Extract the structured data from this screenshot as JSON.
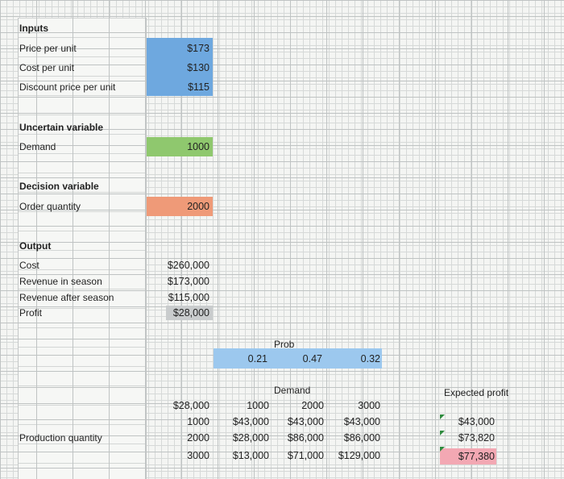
{
  "inputs": {
    "header": "Inputs",
    "price_label": "Price per unit",
    "price_value": "$173",
    "cost_label": "Cost per unit",
    "cost_value": "$130",
    "discount_label": "Discount price per unit",
    "discount_value": "$115"
  },
  "uncertain": {
    "header": "Uncertain variable",
    "demand_label": "Demand",
    "demand_value": "1000"
  },
  "decision": {
    "header": "Decision variable",
    "order_label": "Order quantity",
    "order_value": "2000"
  },
  "output": {
    "header": "Output",
    "cost_label": "Cost",
    "cost_value": "$260,000",
    "rev_in_label": "Revenue in season",
    "rev_in_value": "$173,000",
    "rev_after_label": "Revenue after season",
    "rev_after_value": "$115,000",
    "profit_label": "Profit",
    "profit_value": "$28,000"
  },
  "table": {
    "prob_label": "Prob",
    "probs": [
      "0.21",
      "0.47",
      "0.32"
    ],
    "demand_label": "Demand",
    "corner": "$28,000",
    "demands": [
      "1000",
      "2000",
      "3000"
    ],
    "production_label": "Production quantity",
    "rows": [
      {
        "qty": "1000",
        "cells": [
          "$43,000",
          "$43,000",
          "$43,000"
        ]
      },
      {
        "qty": "2000",
        "cells": [
          "$28,000",
          "$86,000",
          "$86,000"
        ]
      },
      {
        "qty": "3000",
        "cells": [
          "$13,000",
          "$71,000",
          "$129,000"
        ]
      }
    ]
  },
  "expected": {
    "label": "Expected profit",
    "values": [
      "$43,000",
      "$73,820",
      "$77,380"
    ],
    "highlight_color": "#f3a8b3"
  }
}
